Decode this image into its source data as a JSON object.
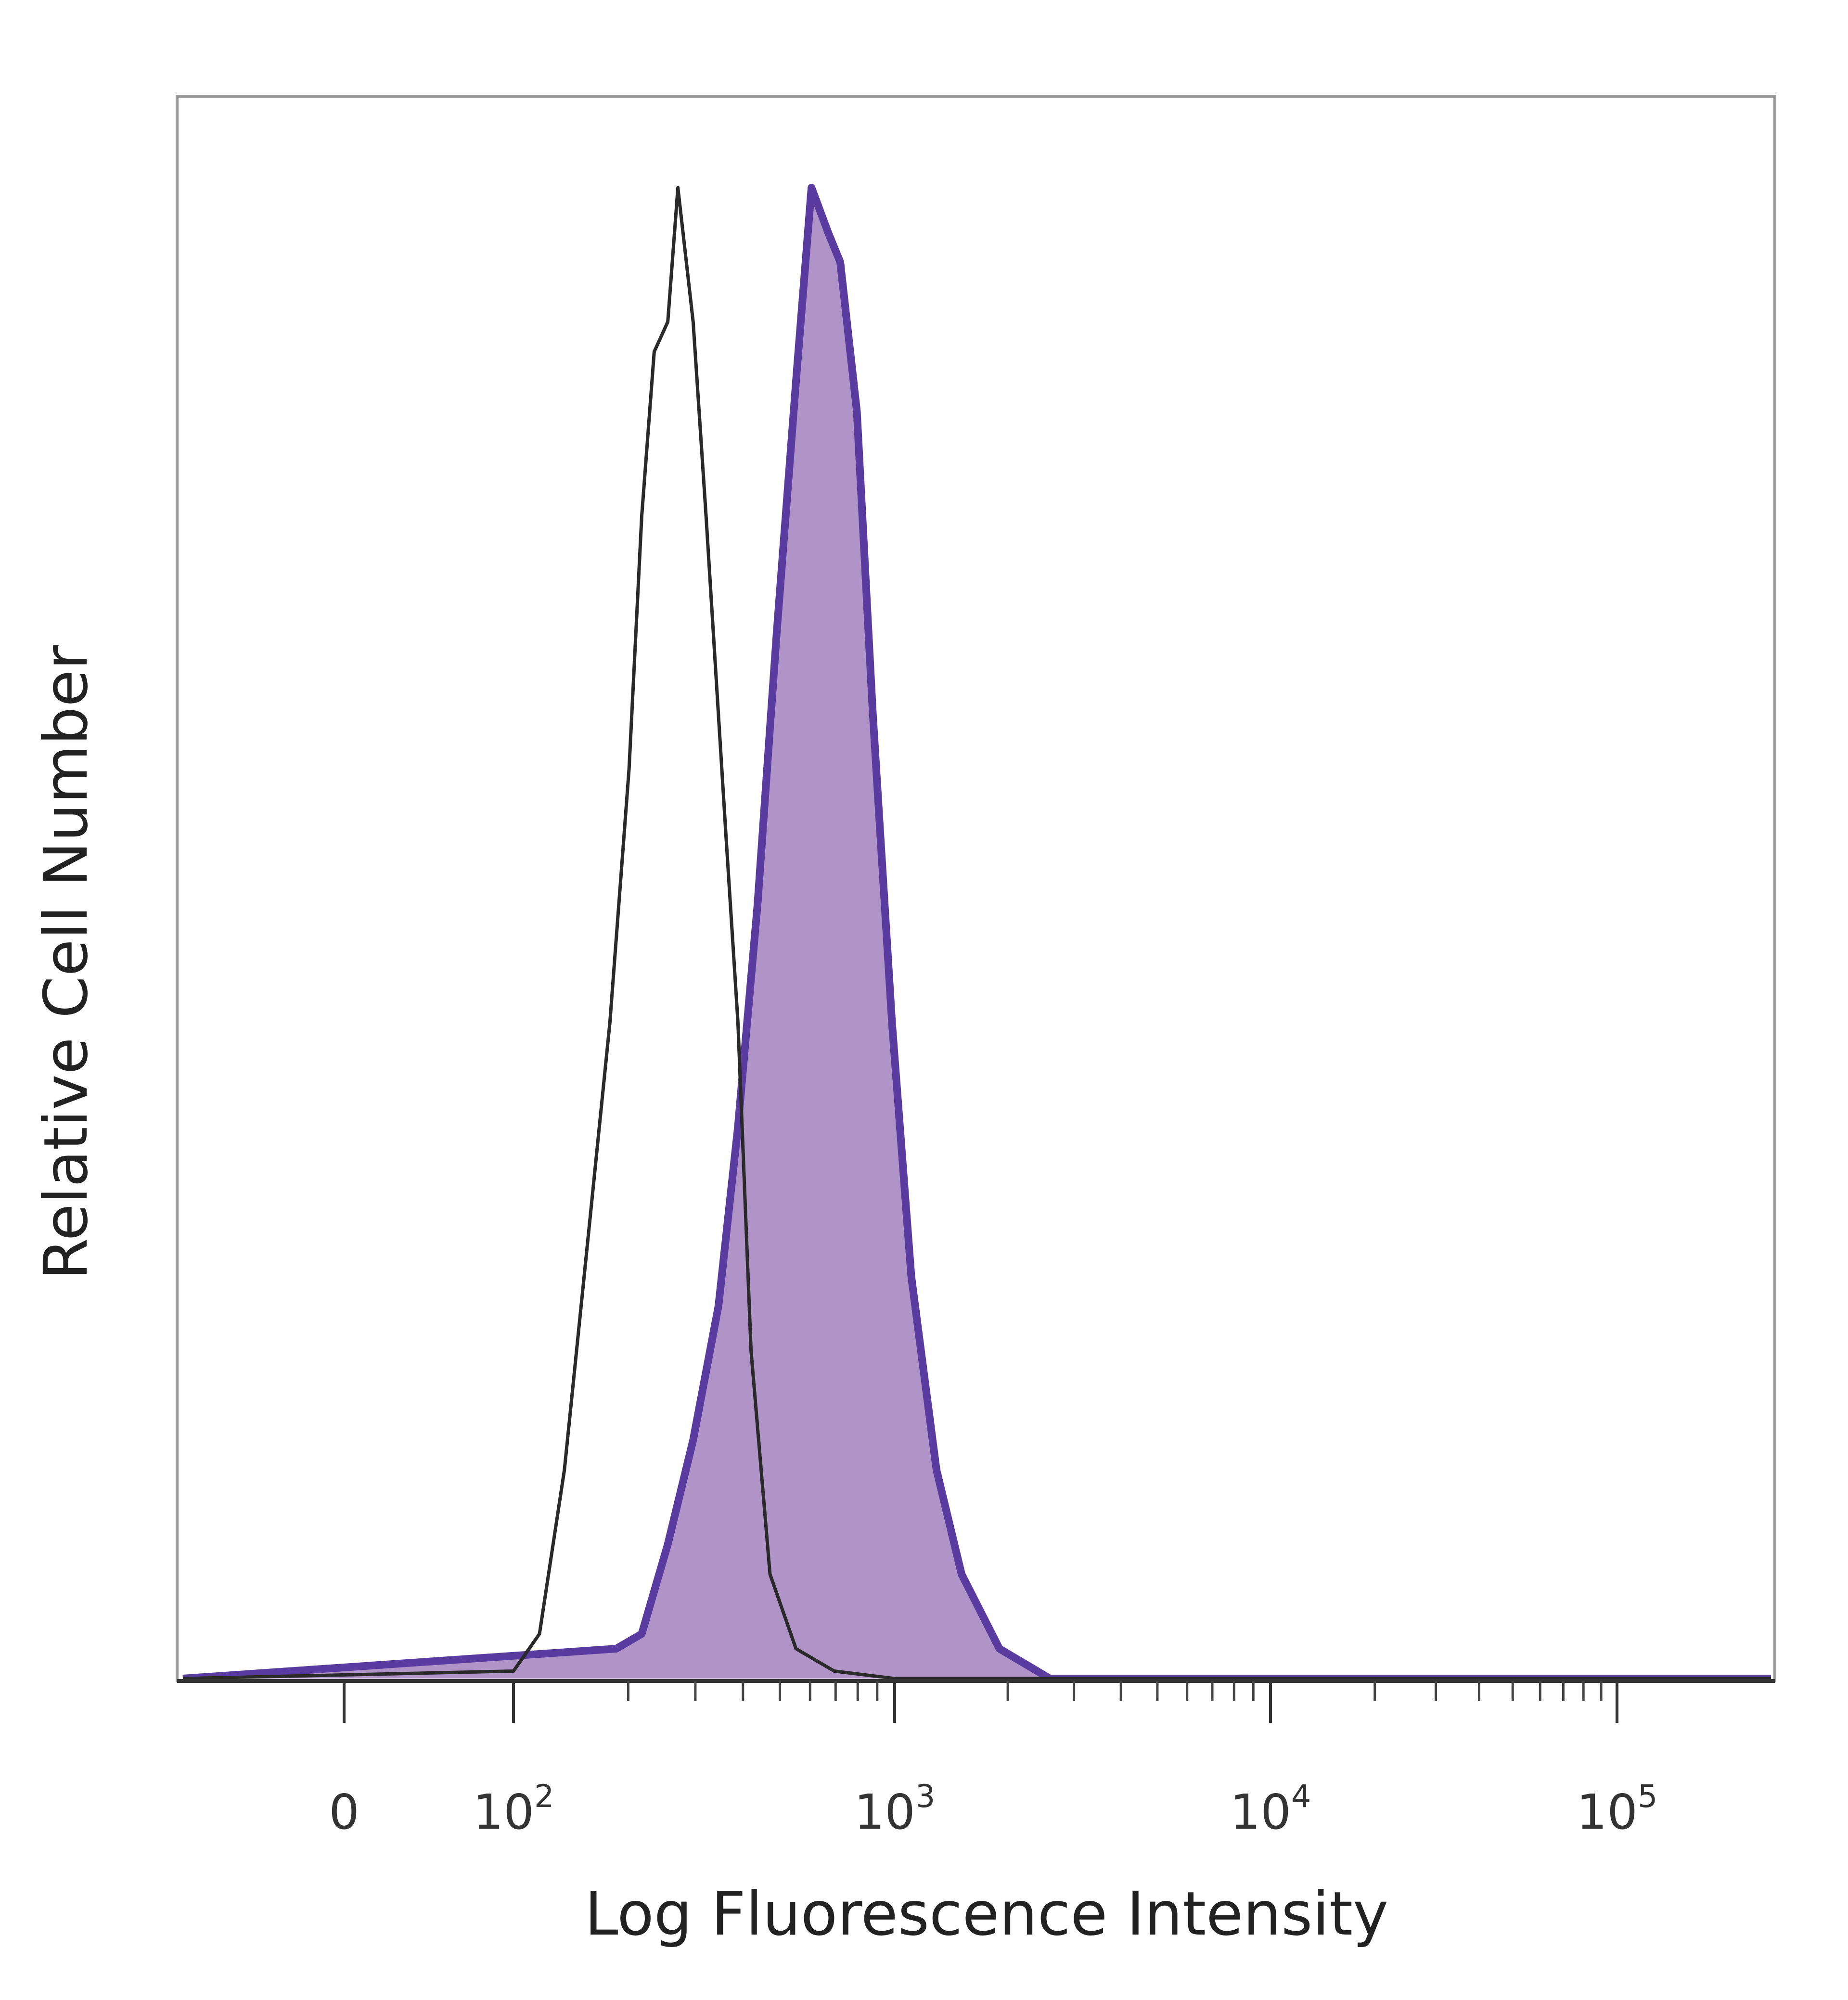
{
  "chart_data": {
    "type": "area",
    "title": "",
    "xlabel": "Log Fluorescence Intensity",
    "ylabel": "Relative Cell Number",
    "x_scale": "logicle",
    "x_ticks": [
      {
        "value": 0,
        "base": "0",
        "exp": ""
      },
      {
        "value": 100,
        "base": "10",
        "exp": "2"
      },
      {
        "value": 1000,
        "base": "10",
        "exp": "3"
      },
      {
        "value": 10000,
        "base": "10",
        "exp": "4"
      },
      {
        "value": 100000,
        "base": "10",
        "exp": "5"
      }
    ],
    "ylim": [
      0,
      100
    ],
    "grid": false,
    "series": [
      {
        "style": "outline",
        "color": "#2a2a2a",
        "x": [
          100,
          117,
          136,
          159,
          179,
          201,
          217,
          234,
          254,
          270,
          296,
          320,
          360,
          388,
          420,
          471,
          551,
          694,
          1000
        ],
        "y": [
          0.5,
          3,
          14,
          31,
          44,
          61,
          78,
          89,
          91,
          100,
          91,
          78,
          57,
          44,
          22,
          7,
          2,
          0.5,
          0
        ]
      },
      {
        "style": "filled",
        "color": "#5a3ca0",
        "fill": "#b094c8",
        "x": [
          186,
          217,
          254,
          296,
          345,
          388,
          437,
          490,
          551,
          605,
          669,
          720,
          796,
          875,
          984,
          1107,
          1292,
          1507,
          1900,
          2587
        ],
        "y": [
          2,
          3,
          9,
          16,
          25,
          37,
          52,
          70,
          87,
          100,
          97,
          95,
          85,
          65,
          44,
          27,
          14,
          7,
          2,
          0
        ]
      }
    ]
  }
}
